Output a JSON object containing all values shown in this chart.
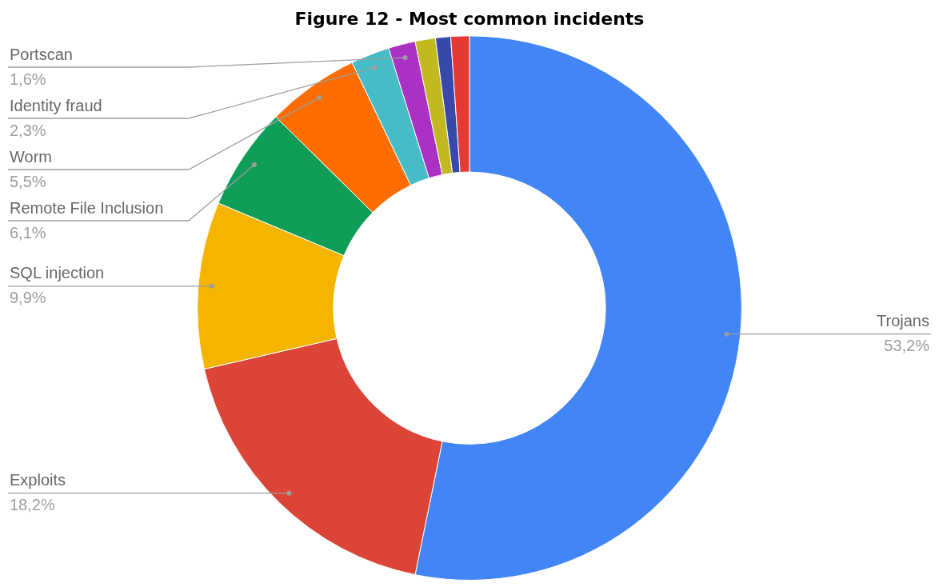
{
  "chart_data": {
    "type": "donut",
    "title": "Figure 12 - Most common incidents",
    "categories": [
      "Trojans",
      "Exploits",
      "SQL injection",
      "Remote File Inclusion",
      "Worm",
      "Identity fraud",
      "Portscan",
      null,
      null,
      null
    ],
    "values": [
      53.2,
      18.2,
      9.9,
      6.1,
      5.5,
      2.3,
      1.6,
      1.2,
      0.9,
      1.1
    ],
    "colors": [
      "#4285f4",
      "#db4437",
      "#f4b400",
      "#0f9d58",
      "#ff6d01",
      "#46bdc6",
      "#ab30c4",
      "#c2b920",
      "#3949ab",
      "#e53935"
    ],
    "value_labels": [
      "53,2%",
      "18,2%",
      "9,9%",
      "6,1%",
      "5,5%",
      "2,3%",
      "1,6%",
      null,
      null,
      null
    ]
  }
}
